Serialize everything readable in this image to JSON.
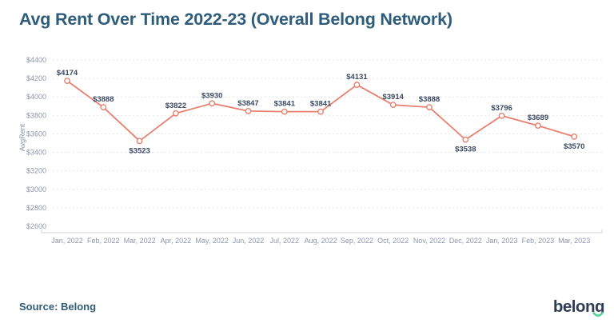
{
  "title": "Avg Rent Over Time 2022-23 (Overall Belong Network)",
  "source": "Source: Belong",
  "logo": {
    "text": "belong"
  },
  "axis_note": "·· ··",
  "colors": {
    "background": "#ffffff",
    "title": "#2e5c7b",
    "line": "#e8806f",
    "marker_fill": "#ffffff",
    "point_label": "#3b4964",
    "tick_label": "#8d96ab",
    "axis_title": "#8d96ab",
    "grid": "#e5e6ec",
    "axis_line": "#d9dbe1",
    "axis_note": "#d3d6de",
    "logo_navy": "#2e3d54",
    "logo_green": "#57d09e"
  },
  "chart_data": {
    "type": "line",
    "title": "Avg Rent Over Time 2022-23 (Overall Belong Network)",
    "xlabel": "",
    "ylabel": "AvgRent",
    "ylim": [
      2600,
      4400
    ],
    "ytick_step": 200,
    "ytick_prefix": "$",
    "grid": "horizontal-dashed",
    "legend": "none",
    "categories": [
      "Jan, 2022",
      "Feb, 2022",
      "Mar, 2022",
      "Apr, 2022",
      "May, 2022",
      "Jun, 2022",
      "Jul, 2022",
      "Aug, 2022",
      "Sep, 2022",
      "Oct, 2022",
      "Nov, 2022",
      "Dec, 2022",
      "Jan, 2023",
      "Feb, 2023",
      "Mar, 2023"
    ],
    "series": [
      {
        "name": "AvgRent",
        "values": [
          4174,
          3888,
          3523,
          3822,
          3930,
          3847,
          3841,
          3841,
          4131,
          3914,
          3888,
          3538,
          3796,
          3689,
          3570
        ],
        "point_labels": [
          "$4174",
          "$3888",
          "$3523",
          "$3822",
          "$3930",
          "$3847",
          "$3841",
          "$3841",
          "$4131",
          "$3914",
          "$3888",
          "$3538",
          "$3796",
          "$3689",
          "$3570"
        ]
      }
    ]
  }
}
